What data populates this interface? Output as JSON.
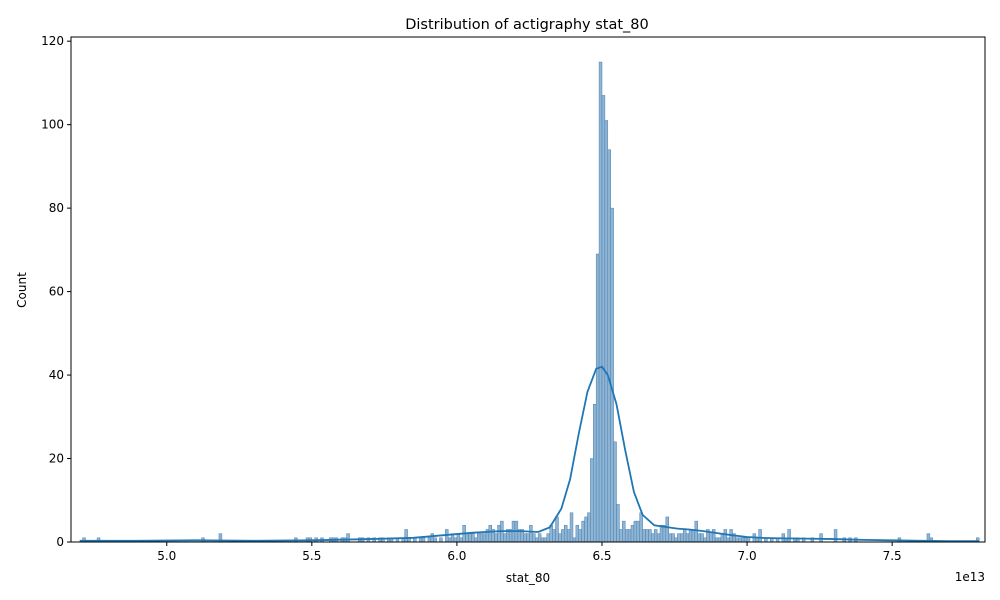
{
  "chart_data": {
    "type": "bar",
    "title": "Distribution of actigraphy stat_80",
    "xlabel": "stat_80",
    "ylabel": "Count",
    "x_offset_label": "1e13",
    "xlim": [
      4.67,
      7.82
    ],
    "ylim": [
      0,
      121
    ],
    "xticks": [
      5.0,
      5.5,
      6.0,
      6.5,
      7.0,
      7.5
    ],
    "xtick_labels": [
      "5.0",
      "5.5",
      "6.0",
      "6.5",
      "7.0",
      "7.5"
    ],
    "yticks": [
      0,
      20,
      40,
      60,
      80,
      100,
      120
    ],
    "ytick_labels": [
      "0",
      "20",
      "40",
      "60",
      "80",
      "100",
      "120"
    ],
    "bin_width": 0.01,
    "grid": false,
    "colors": {
      "bar_fill": "#8fb5d5",
      "bar_edge": "#4d7fae",
      "kde_line": "#1f77b4"
    },
    "series": [
      {
        "kind": "histogram",
        "bins": [
          [
            4.71,
            1
          ],
          [
            4.76,
            1
          ],
          [
            5.12,
            1
          ],
          [
            5.18,
            2
          ],
          [
            5.44,
            1
          ],
          [
            5.48,
            1
          ],
          [
            5.49,
            1
          ],
          [
            5.51,
            1
          ],
          [
            5.53,
            1
          ],
          [
            5.56,
            1
          ],
          [
            5.57,
            1
          ],
          [
            5.58,
            1
          ],
          [
            5.6,
            1
          ],
          [
            5.61,
            1
          ],
          [
            5.62,
            2
          ],
          [
            5.66,
            1
          ],
          [
            5.67,
            1
          ],
          [
            5.69,
            1
          ],
          [
            5.71,
            1
          ],
          [
            5.73,
            1
          ],
          [
            5.74,
            1
          ],
          [
            5.76,
            1
          ],
          [
            5.77,
            1
          ],
          [
            5.79,
            1
          ],
          [
            5.81,
            1
          ],
          [
            5.82,
            3
          ],
          [
            5.83,
            1
          ],
          [
            5.85,
            1
          ],
          [
            5.87,
            1
          ],
          [
            5.88,
            1
          ],
          [
            5.9,
            1
          ],
          [
            5.91,
            2
          ],
          [
            5.92,
            1
          ],
          [
            5.94,
            1
          ],
          [
            5.96,
            3
          ],
          [
            5.97,
            1
          ],
          [
            5.98,
            2
          ],
          [
            5.99,
            1
          ],
          [
            6.0,
            2
          ],
          [
            6.01,
            1
          ],
          [
            6.02,
            4
          ],
          [
            6.03,
            2
          ],
          [
            6.04,
            2
          ],
          [
            6.05,
            2
          ],
          [
            6.06,
            1
          ],
          [
            6.07,
            2
          ],
          [
            6.08,
            2
          ],
          [
            6.09,
            2
          ],
          [
            6.1,
            3
          ],
          [
            6.11,
            4
          ],
          [
            6.12,
            3
          ],
          [
            6.13,
            2
          ],
          [
            6.14,
            4
          ],
          [
            6.15,
            5
          ],
          [
            6.16,
            2
          ],
          [
            6.17,
            3
          ],
          [
            6.18,
            3
          ],
          [
            6.19,
            5
          ],
          [
            6.2,
            5
          ],
          [
            6.21,
            3
          ],
          [
            6.22,
            3
          ],
          [
            6.23,
            2
          ],
          [
            6.24,
            2
          ],
          [
            6.25,
            4
          ],
          [
            6.26,
            2
          ],
          [
            6.27,
            1
          ],
          [
            6.28,
            2
          ],
          [
            6.29,
            1
          ],
          [
            6.3,
            1
          ],
          [
            6.31,
            2
          ],
          [
            6.32,
            4
          ],
          [
            6.33,
            3
          ],
          [
            6.34,
            6
          ],
          [
            6.35,
            2
          ],
          [
            6.36,
            3
          ],
          [
            6.37,
            4
          ],
          [
            6.38,
            3
          ],
          [
            6.39,
            7
          ],
          [
            6.4,
            1
          ],
          [
            6.41,
            4
          ],
          [
            6.42,
            3
          ],
          [
            6.43,
            5
          ],
          [
            6.44,
            6
          ],
          [
            6.45,
            7
          ],
          [
            6.46,
            20
          ],
          [
            6.47,
            33
          ],
          [
            6.48,
            69
          ],
          [
            6.49,
            115
          ],
          [
            6.5,
            107
          ],
          [
            6.51,
            101
          ],
          [
            6.52,
            94
          ],
          [
            6.53,
            80
          ],
          [
            6.54,
            24
          ],
          [
            6.55,
            9
          ],
          [
            6.56,
            3
          ],
          [
            6.57,
            5
          ],
          [
            6.58,
            3
          ],
          [
            6.59,
            3
          ],
          [
            6.6,
            4
          ],
          [
            6.61,
            5
          ],
          [
            6.62,
            5
          ],
          [
            6.63,
            7
          ],
          [
            6.64,
            3
          ],
          [
            6.65,
            3
          ],
          [
            6.66,
            3
          ],
          [
            6.67,
            2
          ],
          [
            6.68,
            3
          ],
          [
            6.69,
            2
          ],
          [
            6.7,
            4
          ],
          [
            6.71,
            4
          ],
          [
            6.72,
            6
          ],
          [
            6.73,
            2
          ],
          [
            6.74,
            2
          ],
          [
            6.75,
            1
          ],
          [
            6.76,
            2
          ],
          [
            6.77,
            2
          ],
          [
            6.78,
            3
          ],
          [
            6.79,
            2
          ],
          [
            6.8,
            3
          ],
          [
            6.81,
            3
          ],
          [
            6.82,
            5
          ],
          [
            6.83,
            2
          ],
          [
            6.84,
            2
          ],
          [
            6.85,
            1
          ],
          [
            6.86,
            3
          ],
          [
            6.87,
            2
          ],
          [
            6.88,
            3
          ],
          [
            6.89,
            1
          ],
          [
            6.9,
            1
          ],
          [
            6.91,
            2
          ],
          [
            6.92,
            3
          ],
          [
            6.93,
            1
          ],
          [
            6.94,
            3
          ],
          [
            6.95,
            2
          ],
          [
            6.96,
            1
          ],
          [
            6.97,
            1
          ],
          [
            6.98,
            1
          ],
          [
            6.99,
            1
          ],
          [
            7.0,
            1
          ],
          [
            7.02,
            2
          ],
          [
            7.03,
            1
          ],
          [
            7.04,
            3
          ],
          [
            7.06,
            1
          ],
          [
            7.08,
            1
          ],
          [
            7.1,
            1
          ],
          [
            7.12,
            2
          ],
          [
            7.13,
            1
          ],
          [
            7.14,
            3
          ],
          [
            7.16,
            1
          ],
          [
            7.17,
            1
          ],
          [
            7.19,
            1
          ],
          [
            7.22,
            1
          ],
          [
            7.25,
            2
          ],
          [
            7.3,
            3
          ],
          [
            7.33,
            1
          ],
          [
            7.35,
            1
          ],
          [
            7.37,
            1
          ],
          [
            7.52,
            1
          ],
          [
            7.62,
            2
          ],
          [
            7.63,
            1
          ],
          [
            7.79,
            1
          ]
        ]
      },
      {
        "kind": "kde",
        "points": [
          [
            4.7,
            0.3
          ],
          [
            4.9,
            0.3
          ],
          [
            5.1,
            0.4
          ],
          [
            5.3,
            0.3
          ],
          [
            5.5,
            0.4
          ],
          [
            5.7,
            0.7
          ],
          [
            5.85,
            1.0
          ],
          [
            5.95,
            1.6
          ],
          [
            6.05,
            2.2
          ],
          [
            6.15,
            2.6
          ],
          [
            6.22,
            2.6
          ],
          [
            6.28,
            2.4
          ],
          [
            6.32,
            3.5
          ],
          [
            6.36,
            8
          ],
          [
            6.39,
            15
          ],
          [
            6.42,
            26
          ],
          [
            6.45,
            36
          ],
          [
            6.48,
            41.5
          ],
          [
            6.5,
            42
          ],
          [
            6.52,
            40
          ],
          [
            6.55,
            33
          ],
          [
            6.58,
            22
          ],
          [
            6.61,
            12
          ],
          [
            6.64,
            6.5
          ],
          [
            6.68,
            4
          ],
          [
            6.72,
            3.6
          ],
          [
            6.76,
            3.2
          ],
          [
            6.8,
            3.0
          ],
          [
            6.85,
            2.6
          ],
          [
            6.9,
            2.1
          ],
          [
            6.95,
            1.6
          ],
          [
            7.0,
            1.2
          ],
          [
            7.05,
            1.0
          ],
          [
            7.1,
            0.9
          ],
          [
            7.2,
            0.8
          ],
          [
            7.3,
            0.7
          ],
          [
            7.4,
            0.5
          ],
          [
            7.5,
            0.4
          ],
          [
            7.6,
            0.3
          ],
          [
            7.7,
            0.2
          ],
          [
            7.8,
            0.2
          ]
        ]
      }
    ]
  }
}
